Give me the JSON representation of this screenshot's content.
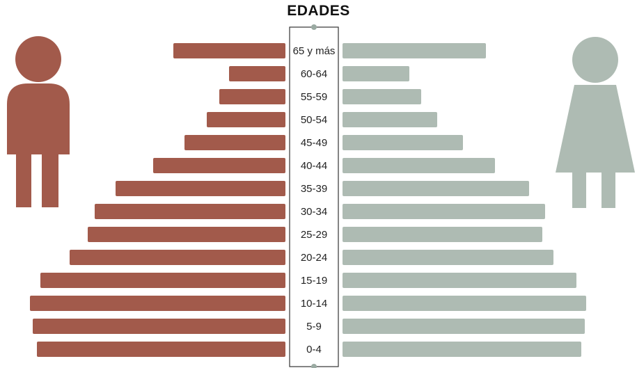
{
  "colors": {
    "male": "#a25a4b",
    "female": "#aebbb3",
    "axis_box": "#333333",
    "knob": "#9aaaa2"
  },
  "icons": {
    "left": "male-person-icon",
    "right": "female-person-icon"
  },
  "chart_data": {
    "type": "bar",
    "orientation": "horizontal",
    "title": "EDADES",
    "categories": [
      "65 y más",
      "60-64",
      "55-59",
      "50-54",
      "45-49",
      "40-44",
      "35-39",
      "30-34",
      "25-29",
      "20-24",
      "15-19",
      "10-14",
      "5-9",
      "0-4"
    ],
    "series": [
      {
        "side": "left",
        "color": "#a25a4b",
        "values": [
          161,
          81,
          95,
          113,
          145,
          190,
          244,
          274,
          284,
          310,
          352,
          367,
          363,
          357
        ]
      },
      {
        "side": "right",
        "color": "#aebbb3",
        "values": [
          206,
          96,
          113,
          136,
          173,
          219,
          268,
          291,
          287,
          303,
          336,
          350,
          348,
          343
        ]
      }
    ],
    "xlim": [
      0,
      400
    ],
    "grid": false,
    "legend": "none"
  }
}
